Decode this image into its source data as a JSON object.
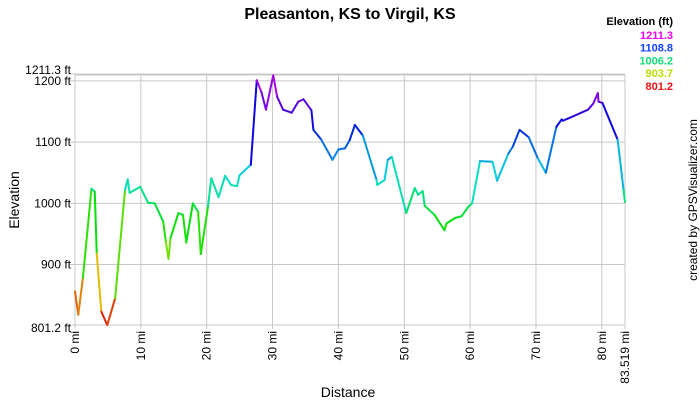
{
  "chart_data": {
    "type": "line",
    "title": "Pleasanton, KS to Virgil, KS",
    "xlabel": "Distance",
    "ylabel": "Elevation",
    "xlim": [
      0,
      83.519
    ],
    "ylim": [
      801.2,
      1211.3
    ],
    "grid": true,
    "x_ticks": [
      {
        "value": 0,
        "label": "0 mi"
      },
      {
        "value": 10,
        "label": "10 mi"
      },
      {
        "value": 20,
        "label": "20 mi"
      },
      {
        "value": 30,
        "label": "30 mi"
      },
      {
        "value": 40,
        "label": "40 mi"
      },
      {
        "value": 50,
        "label": "50 mi"
      },
      {
        "value": 60,
        "label": "60 mi"
      },
      {
        "value": 70,
        "label": "70 mi"
      },
      {
        "value": 80,
        "label": "80 mi"
      },
      {
        "value": 83.519,
        "label": "83.519 mi"
      }
    ],
    "y_ticks": [
      {
        "value": 801.2,
        "label": "801.2 ft"
      },
      {
        "value": 900,
        "label": "900 ft"
      },
      {
        "value": 1000,
        "label": "1000 ft"
      },
      {
        "value": 1100,
        "label": "1100 ft"
      },
      {
        "value": 1200,
        "label": "1200 ft"
      },
      {
        "value": 1211.3,
        "label": "1211.3 ft"
      }
    ],
    "color_scale": "elevation hue gradient (red low to magenta high)",
    "legend": {
      "title": "Elevation (ft)",
      "placement": "top-right",
      "entries": [
        {
          "label": "1211.3",
          "color": "#ee00ee"
        },
        {
          "label": "1108.8",
          "color": "#1144ff"
        },
        {
          "label": "1006.2",
          "color": "#11dd77"
        },
        {
          "label": "903.7",
          "color": "#bbdd00"
        },
        {
          "label": "801.2",
          "color": "#ee1111"
        }
      ]
    },
    "points": [
      [
        0,
        856
      ],
      [
        0.5,
        818
      ],
      [
        1.2,
        878
      ],
      [
        2.5,
        1024
      ],
      [
        3.0,
        1019
      ],
      [
        3.3,
        918
      ],
      [
        4.0,
        823
      ],
      [
        4.9,
        801
      ],
      [
        6.1,
        845
      ],
      [
        7.6,
        1022
      ],
      [
        8.0,
        1039
      ],
      [
        8.3,
        1017
      ],
      [
        9.9,
        1027
      ],
      [
        11.1,
        1001
      ],
      [
        12.1,
        1000
      ],
      [
        13.4,
        970
      ],
      [
        13.8,
        937
      ],
      [
        14.2,
        909
      ],
      [
        14.5,
        943
      ],
      [
        15.7,
        984
      ],
      [
        16.4,
        981
      ],
      [
        16.9,
        936
      ],
      [
        17.9,
        1000
      ],
      [
        18.7,
        986
      ],
      [
        19.1,
        917
      ],
      [
        20.2,
        995
      ],
      [
        20.7,
        1041
      ],
      [
        21.8,
        1010
      ],
      [
        22.8,
        1045
      ],
      [
        23.7,
        1030
      ],
      [
        24.6,
        1028
      ],
      [
        25.0,
        1046
      ],
      [
        26.7,
        1063
      ],
      [
        27.6,
        1201
      ],
      [
        28.3,
        1182
      ],
      [
        29.0,
        1153
      ],
      [
        30.1,
        1209
      ],
      [
        30.7,
        1174
      ],
      [
        31.6,
        1153
      ],
      [
        32.9,
        1148
      ],
      [
        33.9,
        1166
      ],
      [
        34.7,
        1170
      ],
      [
        35.9,
        1152
      ],
      [
        36.2,
        1120
      ],
      [
        37.4,
        1104
      ],
      [
        39.1,
        1071
      ],
      [
        40.0,
        1088
      ],
      [
        41.0,
        1090
      ],
      [
        41.7,
        1103
      ],
      [
        42.5,
        1128
      ],
      [
        43.7,
        1111
      ],
      [
        45.8,
        1038
      ],
      [
        45.9,
        1030
      ],
      [
        47.0,
        1038
      ],
      [
        47.5,
        1071
      ],
      [
        48.1,
        1076
      ],
      [
        50.3,
        984
      ],
      [
        51.6,
        1025
      ],
      [
        52.1,
        1014
      ],
      [
        52.8,
        1020
      ],
      [
        53.1,
        996
      ],
      [
        54.6,
        981
      ],
      [
        56.1,
        956
      ],
      [
        56.4,
        967
      ],
      [
        57.7,
        976
      ],
      [
        58.7,
        979
      ],
      [
        59.7,
        994
      ],
      [
        60.3,
        1000
      ],
      [
        61.5,
        1069
      ],
      [
        63.4,
        1068
      ],
      [
        64.1,
        1037
      ],
      [
        65.8,
        1081
      ],
      [
        66.5,
        1093
      ],
      [
        67.5,
        1120
      ],
      [
        68.9,
        1108
      ],
      [
        70.3,
        1073
      ],
      [
        71.5,
        1050
      ],
      [
        73.1,
        1125
      ],
      [
        73.9,
        1137
      ],
      [
        74.1,
        1135
      ],
      [
        75.6,
        1142
      ],
      [
        77.9,
        1153
      ],
      [
        78.7,
        1163
      ],
      [
        79.4,
        1180
      ],
      [
        79.5,
        1166
      ],
      [
        80.1,
        1164
      ],
      [
        82.4,
        1104
      ],
      [
        83.3,
        1022
      ],
      [
        83.519,
        1002
      ]
    ]
  },
  "credit": "created by GPSVisualizer.com"
}
